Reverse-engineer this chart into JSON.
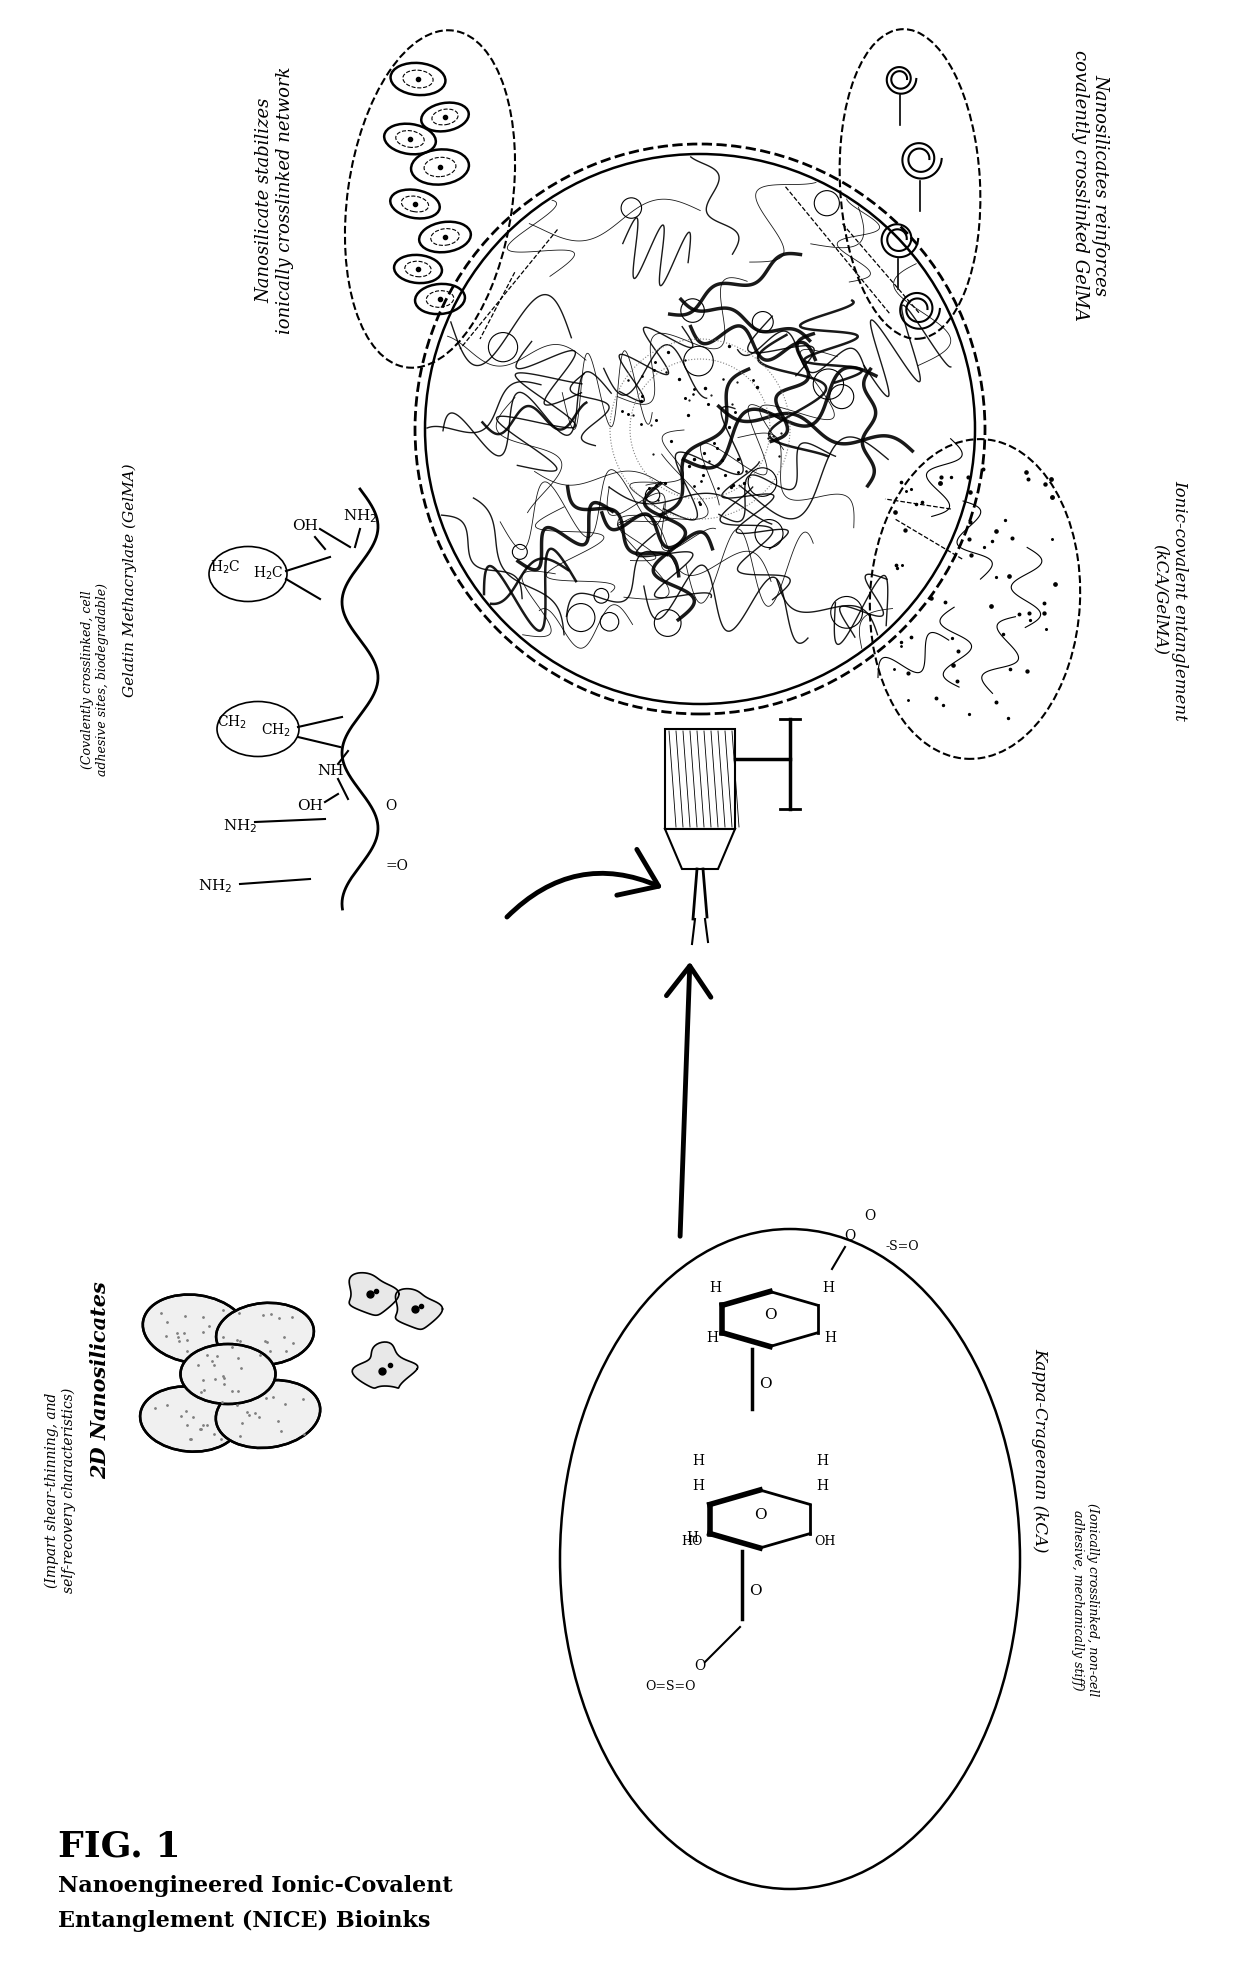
{
  "bg_color": "#ffffff",
  "title": "FIG. 1",
  "subtitle1": "Nanoengineered Ionic-Covalent",
  "subtitle2": "Entanglement (NICE) Bioinks",
  "label_gelma_title": "Gelatin Methacrylate (GelMA)",
  "label_gelma_sub": "(Covalently crosslinked, cell\nadhesive sites, biodegradable)",
  "label_ns_title": "2D Nanosilicates",
  "label_ns_sub": "(Impart shear-thinning, and\nself-recovery characteristics)",
  "label_kca_title": "Kappa-Crageenan (kCA)",
  "label_kca_sub": "(Ionically crosslinked, non-cell\nadhesive, mechanically stiff)",
  "label_ice_title": "Ionic-covalent entanglement",
  "label_ice_sub": "(kCA/GelMA)",
  "label_ns_stab1": "Nanosilicate stabilizes",
  "label_ns_stab2": "ionically crosslinked network",
  "label_ns_reinf1": "Nanosilicates reinforces",
  "label_ns_reinf2": "covalently crosslinked GelMA"
}
